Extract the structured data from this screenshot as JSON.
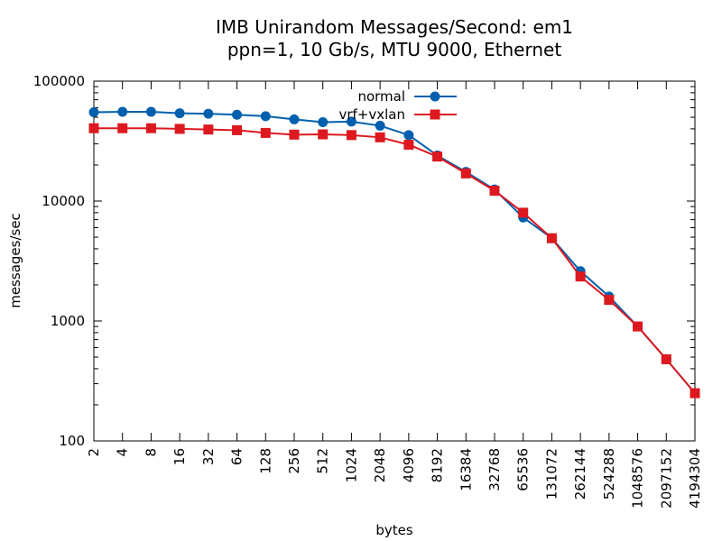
{
  "chart_data": {
    "type": "line",
    "title": "IMB Unirandom Messages/Second: em1",
    "subtitle": "ppn=1, 10 Gb/s, MTU 9000, Ethernet",
    "xlabel": "bytes",
    "ylabel": "messages/sec",
    "xscale": "log",
    "yscale": "log",
    "ylim": [
      100,
      100000
    ],
    "xlim": [
      2,
      4194304
    ],
    "grid": false,
    "legend_position": "top-right",
    "x_tick_labels": [
      "2",
      "4",
      "8",
      "16",
      "32",
      "64",
      "128",
      "256",
      "512",
      "1024",
      "2048",
      "4096",
      "8192",
      "16384",
      "32768",
      "65536",
      "131072",
      "262144",
      "524288",
      "1048576",
      "2097152",
      "4194304"
    ],
    "y_tick_labels": [
      "100",
      "1000",
      "10000",
      "100000"
    ],
    "x": [
      2,
      4,
      8,
      16,
      32,
      64,
      128,
      256,
      512,
      1024,
      2048,
      4096,
      8192,
      16384,
      32768,
      65536,
      131072,
      262144,
      524288,
      1048576,
      2097152,
      4194304
    ],
    "series": [
      {
        "name": "normal",
        "color": "#0060ad",
        "marker": "circle",
        "values": [
          55000,
          55500,
          55500,
          54000,
          53500,
          52500,
          51000,
          48000,
          45500,
          46000,
          42500,
          35500,
          24000,
          17500,
          12500,
          7300,
          4900,
          2600,
          1600,
          900,
          480,
          250
        ]
      },
      {
        "name": "vrf+vxlan",
        "color": "#dd181f",
        "marker": "square",
        "values": [
          40500,
          40500,
          40500,
          40000,
          39500,
          39000,
          37000,
          35800,
          36000,
          35500,
          34000,
          29500,
          23500,
          17000,
          12200,
          8000,
          4900,
          2350,
          1500,
          900,
          480,
          250
        ]
      }
    ]
  }
}
